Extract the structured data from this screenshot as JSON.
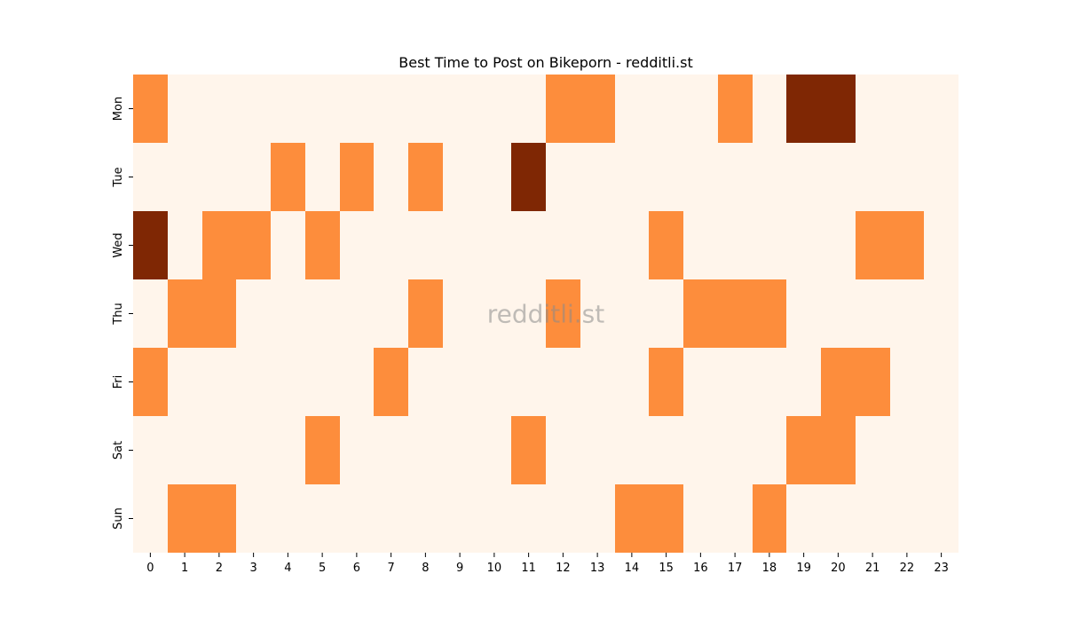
{
  "chart_data": {
    "type": "heatmap",
    "title": "Best Time to Post on Bikeporn - redditli.st",
    "watermark": "redditli.st",
    "xlabel": "",
    "ylabel": "",
    "x_categories": [
      "0",
      "1",
      "2",
      "3",
      "4",
      "5",
      "6",
      "7",
      "8",
      "9",
      "10",
      "11",
      "12",
      "13",
      "14",
      "15",
      "16",
      "17",
      "18",
      "19",
      "20",
      "21",
      "22",
      "23"
    ],
    "y_categories": [
      "Mon",
      "Tue",
      "Wed",
      "Thu",
      "Fri",
      "Sat",
      "Sun"
    ],
    "values": [
      [
        1,
        0,
        0,
        0,
        0,
        0,
        0,
        0,
        0,
        0,
        0,
        0,
        1,
        1,
        0,
        0,
        0,
        1,
        0,
        2,
        2,
        0,
        0,
        0
      ],
      [
        0,
        0,
        0,
        0,
        1,
        0,
        1,
        0,
        1,
        0,
        0,
        2,
        0,
        0,
        0,
        0,
        0,
        0,
        0,
        0,
        0,
        0,
        0,
        0
      ],
      [
        2,
        0,
        1,
        1,
        0,
        1,
        0,
        0,
        0,
        0,
        0,
        0,
        0,
        0,
        0,
        1,
        0,
        0,
        0,
        0,
        0,
        1,
        1,
        0
      ],
      [
        0,
        1,
        1,
        0,
        0,
        0,
        0,
        0,
        1,
        0,
        0,
        0,
        1,
        0,
        0,
        0,
        1,
        1,
        1,
        0,
        0,
        0,
        0,
        0
      ],
      [
        1,
        0,
        0,
        0,
        0,
        0,
        0,
        1,
        0,
        0,
        0,
        0,
        0,
        0,
        0,
        1,
        0,
        0,
        0,
        0,
        1,
        1,
        0,
        0
      ],
      [
        0,
        0,
        0,
        0,
        0,
        1,
        0,
        0,
        0,
        0,
        0,
        1,
        0,
        0,
        0,
        0,
        0,
        0,
        0,
        1,
        1,
        0,
        0,
        0
      ],
      [
        0,
        1,
        1,
        0,
        0,
        0,
        0,
        0,
        0,
        0,
        0,
        0,
        0,
        0,
        1,
        1,
        0,
        0,
        1,
        0,
        0,
        0,
        0,
        0
      ]
    ],
    "colors": {
      "0": "#fff5eb",
      "1": "#fd8d3c",
      "2": "#7f2704"
    },
    "grid": false,
    "colorbar": false,
    "legend": "none"
  }
}
